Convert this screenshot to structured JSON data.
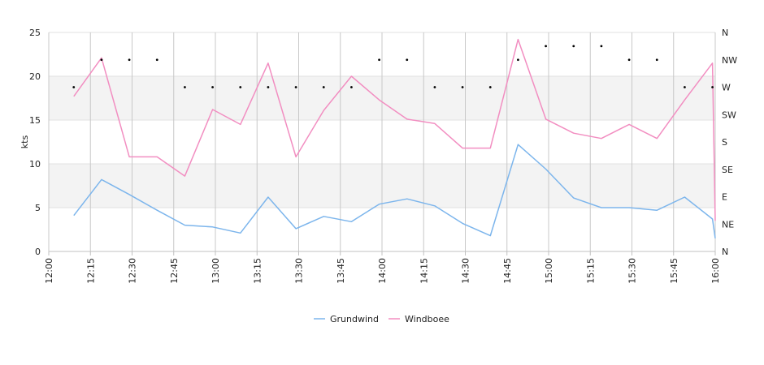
{
  "chart_data": {
    "type": "line",
    "ylabel": "kts",
    "ylim": [
      0,
      25
    ],
    "y_ticks": [
      0,
      5,
      10,
      15,
      20,
      25
    ],
    "x_domain": [
      "12:00",
      "16:00"
    ],
    "x_ticks": [
      "12:00",
      "12:15",
      "12:30",
      "12:45",
      "13:00",
      "13:15",
      "13:30",
      "13:45",
      "14:00",
      "14:15",
      "14:30",
      "14:45",
      "15:00",
      "15:15",
      "15:30",
      "15:45",
      "16:00"
    ],
    "y2_ticks": [
      "N",
      "NE",
      "E",
      "SE",
      "S",
      "SW",
      "W",
      "NW",
      "N"
    ],
    "shaded_bands": [
      [
        5,
        10
      ],
      [
        15,
        20
      ]
    ],
    "grid": true,
    "legend_position": "bottom",
    "series": [
      {
        "name": "Grundwind",
        "color": "#7cb5ec",
        "points": [
          {
            "x": "12:09",
            "y": 4.1
          },
          {
            "x": "12:19",
            "y": 8.2
          },
          {
            "x": "12:29",
            "y": 6.5
          },
          {
            "x": "12:39",
            "y": 4.7
          },
          {
            "x": "12:49",
            "y": 3.0
          },
          {
            "x": "12:59",
            "y": 2.8
          },
          {
            "x": "13:09",
            "y": 2.1
          },
          {
            "x": "13:19",
            "y": 6.2
          },
          {
            "x": "13:29",
            "y": 2.6
          },
          {
            "x": "13:39",
            "y": 4.0
          },
          {
            "x": "13:49",
            "y": 3.4
          },
          {
            "x": "13:59",
            "y": 5.4
          },
          {
            "x": "14:09",
            "y": 6.0
          },
          {
            "x": "14:19",
            "y": 5.2
          },
          {
            "x": "14:29",
            "y": 3.2
          },
          {
            "x": "14:39",
            "y": 1.8
          },
          {
            "x": "14:49",
            "y": 12.2
          },
          {
            "x": "14:59",
            "y": 9.4
          },
          {
            "x": "15:09",
            "y": 6.1
          },
          {
            "x": "15:19",
            "y": 5.0
          },
          {
            "x": "15:29",
            "y": 5.0
          },
          {
            "x": "15:39",
            "y": 4.7
          },
          {
            "x": "15:49",
            "y": 6.2
          },
          {
            "x": "15:59",
            "y": 3.7
          },
          {
            "x": "16:00",
            "y": 1.5
          }
        ]
      },
      {
        "name": "Windboee",
        "color": "#f28ec1",
        "points": [
          {
            "x": "12:09",
            "y": 17.7
          },
          {
            "x": "12:19",
            "y": 22.1
          },
          {
            "x": "12:29",
            "y": 10.8
          },
          {
            "x": "12:39",
            "y": 10.8
          },
          {
            "x": "12:49",
            "y": 8.6
          },
          {
            "x": "12:59",
            "y": 16.2
          },
          {
            "x": "13:09",
            "y": 14.5
          },
          {
            "x": "13:19",
            "y": 21.5
          },
          {
            "x": "13:29",
            "y": 10.8
          },
          {
            "x": "13:39",
            "y": 16.1
          },
          {
            "x": "13:49",
            "y": 20.0
          },
          {
            "x": "13:59",
            "y": 17.3
          },
          {
            "x": "14:09",
            "y": 15.1
          },
          {
            "x": "14:19",
            "y": 14.6
          },
          {
            "x": "14:29",
            "y": 11.8
          },
          {
            "x": "14:39",
            "y": 11.8
          },
          {
            "x": "14:49",
            "y": 24.2
          },
          {
            "x": "14:59",
            "y": 15.1
          },
          {
            "x": "15:09",
            "y": 13.5
          },
          {
            "x": "15:19",
            "y": 12.9
          },
          {
            "x": "15:29",
            "y": 14.5
          },
          {
            "x": "15:39",
            "y": 12.9
          },
          {
            "x": "15:49",
            "y": 17.3
          },
          {
            "x": "15:59",
            "y": 21.5
          },
          {
            "x": "16:00",
            "y": 3.5
          }
        ]
      },
      {
        "type": "scatter",
        "color": "#000000",
        "y_axis": "direction",
        "points": [
          {
            "x": "12:09",
            "y": "W"
          },
          {
            "x": "12:19",
            "y": "NW"
          },
          {
            "x": "12:29",
            "y": "NW"
          },
          {
            "x": "12:39",
            "y": "NW"
          },
          {
            "x": "12:49",
            "y": "W"
          },
          {
            "x": "12:59",
            "y": "W"
          },
          {
            "x": "13:09",
            "y": "W"
          },
          {
            "x": "13:19",
            "y": "W"
          },
          {
            "x": "13:29",
            "y": "W"
          },
          {
            "x": "13:39",
            "y": "W"
          },
          {
            "x": "13:49",
            "y": "W"
          },
          {
            "x": "13:59",
            "y": "NW"
          },
          {
            "x": "14:09",
            "y": "NW"
          },
          {
            "x": "14:19",
            "y": "W"
          },
          {
            "x": "14:29",
            "y": "W"
          },
          {
            "x": "14:39",
            "y": "W"
          },
          {
            "x": "14:49",
            "y": "NW"
          },
          {
            "x": "14:59",
            "y": "NNW"
          },
          {
            "x": "15:09",
            "y": "NNW"
          },
          {
            "x": "15:19",
            "y": "NNW"
          },
          {
            "x": "15:29",
            "y": "NW"
          },
          {
            "x": "15:39",
            "y": "NW"
          },
          {
            "x": "15:49",
            "y": "W"
          },
          {
            "x": "15:59",
            "y": "W"
          }
        ]
      }
    ]
  }
}
